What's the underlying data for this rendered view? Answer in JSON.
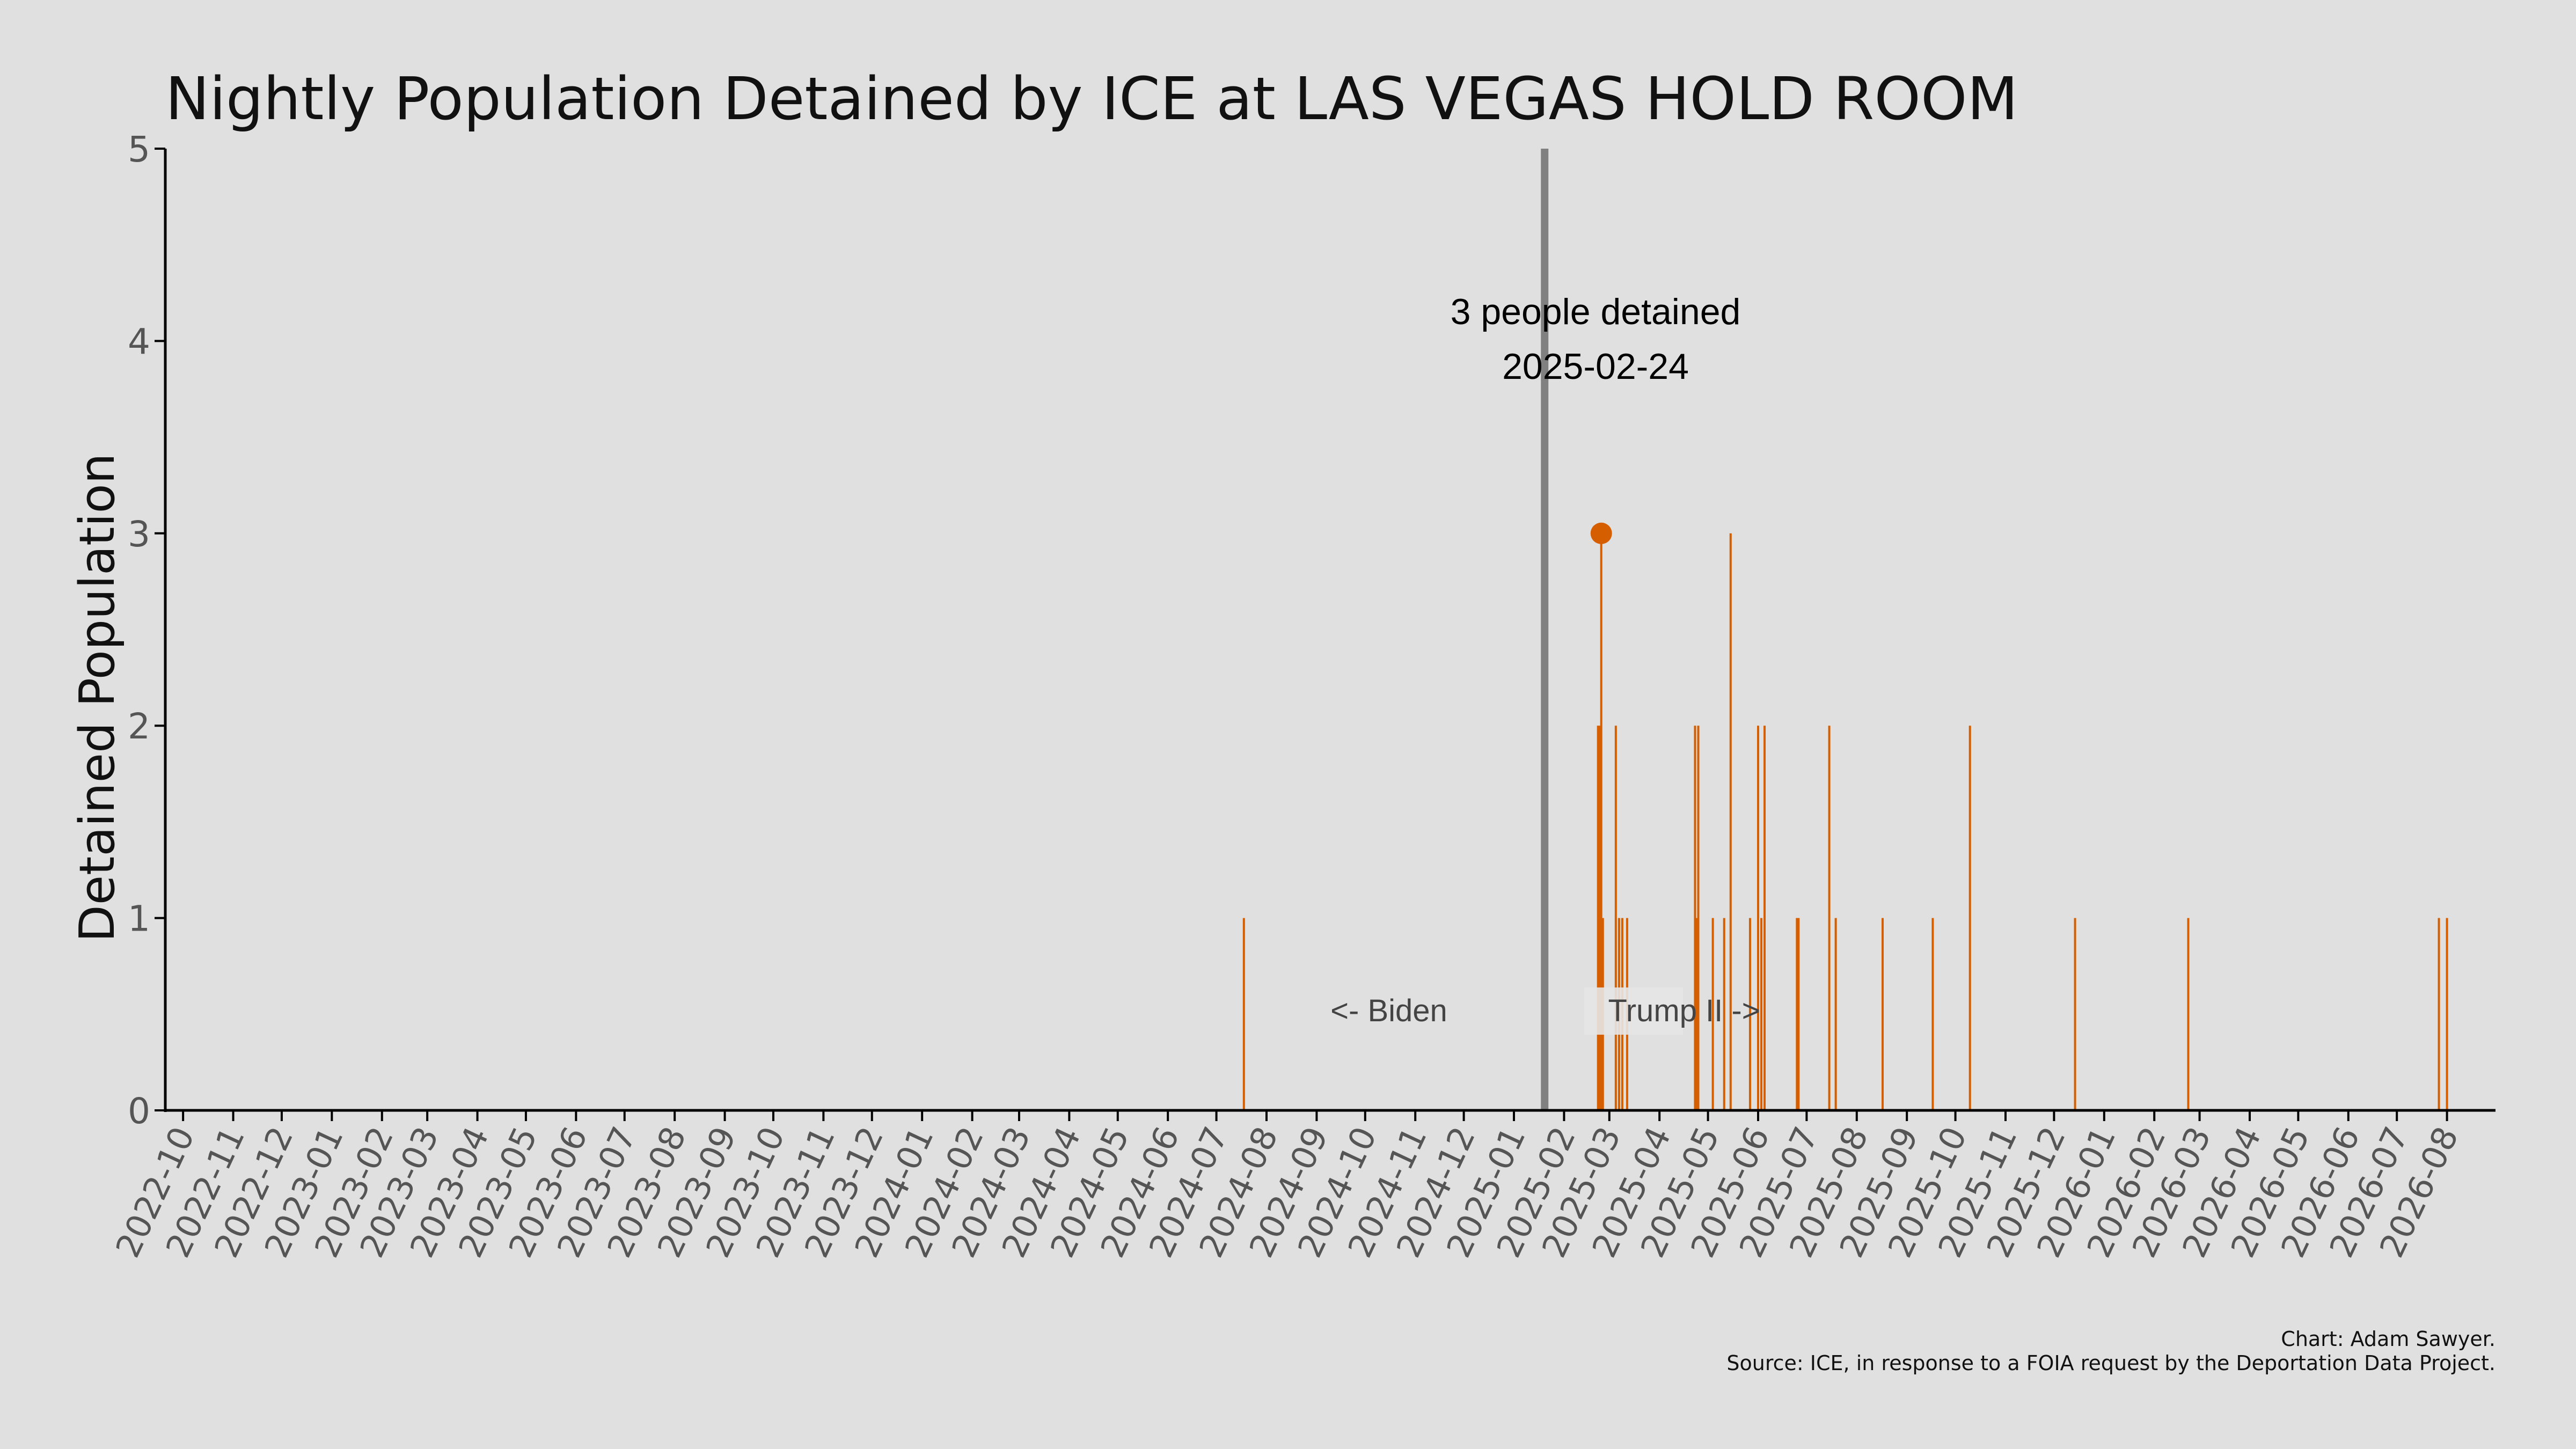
{
  "chart_data": {
    "type": "bar",
    "title": "Nightly Population Detained by ICE at LAS VEGAS HOLD ROOM",
    "ylabel": "Detained Population",
    "xlabel": "",
    "ylim": [
      0,
      5
    ],
    "yticks": [
      0,
      1,
      2,
      3,
      4,
      5
    ],
    "xlim": [
      "2022-09-20",
      "2026-08-31"
    ],
    "xtick_labels": [
      "2022-10",
      "2022-11",
      "2022-12",
      "2023-01",
      "2023-02",
      "2023-03",
      "2023-04",
      "2023-05",
      "2023-06",
      "2023-07",
      "2023-08",
      "2023-09",
      "2023-10",
      "2023-11",
      "2023-12",
      "2024-01",
      "2024-02",
      "2024-03",
      "2024-04",
      "2024-05",
      "2024-06",
      "2024-07",
      "2024-08",
      "2024-09",
      "2024-10",
      "2024-11",
      "2024-12",
      "2025-01",
      "2025-02",
      "2025-03",
      "2025-04",
      "2025-05",
      "2025-06",
      "2025-07",
      "2025-08",
      "2025-09",
      "2025-10",
      "2025-11",
      "2025-12",
      "2026-01",
      "2026-02",
      "2026-03",
      "2026-04",
      "2026-05",
      "2026-06",
      "2026-07",
      "2026-08"
    ],
    "series": [
      {
        "color": "#d55e00",
        "points": [
          {
            "date": "2024-07-18",
            "value": 1
          },
          {
            "date": "2025-02-22",
            "value": 2
          },
          {
            "date": "2025-02-23",
            "value": 2
          },
          {
            "date": "2025-02-24",
            "value": 3
          },
          {
            "date": "2025-02-25",
            "value": 1
          },
          {
            "date": "2025-03-05",
            "value": 2
          },
          {
            "date": "2025-03-07",
            "value": 1
          },
          {
            "date": "2025-03-09",
            "value": 1
          },
          {
            "date": "2025-03-12",
            "value": 1
          },
          {
            "date": "2025-04-23",
            "value": 2
          },
          {
            "date": "2025-04-24",
            "value": 1
          },
          {
            "date": "2025-04-25",
            "value": 2
          },
          {
            "date": "2025-05-04",
            "value": 1
          },
          {
            "date": "2025-05-11",
            "value": 1
          },
          {
            "date": "2025-05-15",
            "value": 3
          },
          {
            "date": "2025-05-27",
            "value": 1
          },
          {
            "date": "2025-06-01",
            "value": 2
          },
          {
            "date": "2025-06-03",
            "value": 1
          },
          {
            "date": "2025-06-05",
            "value": 2
          },
          {
            "date": "2025-06-25",
            "value": 1
          },
          {
            "date": "2025-06-26",
            "value": 1
          },
          {
            "date": "2025-07-15",
            "value": 2
          },
          {
            "date": "2025-07-19",
            "value": 1
          },
          {
            "date": "2025-08-17",
            "value": 1
          },
          {
            "date": "2025-09-17",
            "value": 1
          },
          {
            "date": "2025-10-10",
            "value": 2
          },
          {
            "date": "2025-12-14",
            "value": 1
          },
          {
            "date": "2026-02-22",
            "value": 1
          },
          {
            "date": "2026-07-27",
            "value": 1
          },
          {
            "date": "2026-08-01",
            "value": 1
          }
        ]
      }
    ],
    "highlight": {
      "date": "2025-02-24",
      "value": 3,
      "color": "#d55e00"
    },
    "vline": {
      "date": "2025-01-20",
      "color": "#808080"
    },
    "annotation": {
      "line1": "3 people detained",
      "line2": "2025-02-24"
    },
    "biden_label": "<- Biden",
    "trump_label": "Trump II ->",
    "grid": false
  },
  "footer": {
    "credit": "Chart: Adam Sawyer.",
    "source": "Source: ICE, in response to a FOIA request by the Deportation Data Project."
  },
  "colors": {
    "background": "#e0e0e0",
    "bars": "#d55e00",
    "vline": "#808080",
    "text": "#111111",
    "ticks": "#555555"
  }
}
